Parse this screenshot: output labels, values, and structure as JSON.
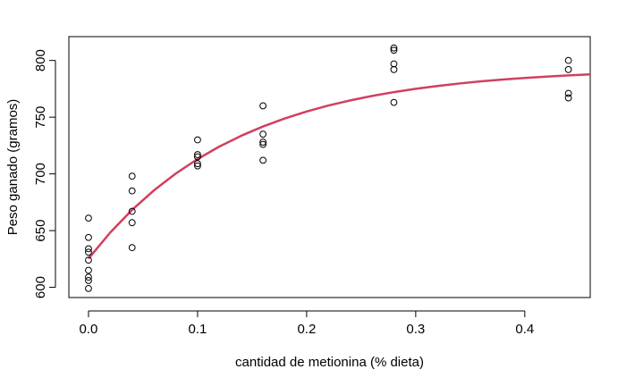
{
  "chart_data": {
    "type": "scatter",
    "title": "",
    "xlabel": "cantidad de metionina (% dieta)",
    "ylabel": "Peso ganado (gramos)",
    "xlim": [
      -0.018,
      0.46
    ],
    "ylim": [
      591,
      821
    ],
    "xticks": [
      {
        "value": 0.0,
        "label": "0.0"
      },
      {
        "value": 0.1,
        "label": "0.1"
      },
      {
        "value": 0.2,
        "label": "0.2"
      },
      {
        "value": 0.3,
        "label": "0.3"
      },
      {
        "value": 0.4,
        "label": "0.4"
      }
    ],
    "yticks": [
      {
        "value": 600,
        "label": "600"
      },
      {
        "value": 650,
        "label": "650"
      },
      {
        "value": 700,
        "label": "700"
      },
      {
        "value": 750,
        "label": "750"
      },
      {
        "value": 800,
        "label": "800"
      }
    ],
    "grid": false,
    "series": [
      {
        "type": "scatter",
        "marker": "open-circle",
        "color": "#000000",
        "points": [
          [
            0.0,
            661
          ],
          [
            0.0,
            644
          ],
          [
            0.0,
            634
          ],
          [
            0.0,
            631
          ],
          [
            0.0,
            624
          ],
          [
            0.0,
            615
          ],
          [
            0.0,
            609
          ],
          [
            0.0,
            606
          ],
          [
            0.0,
            599
          ],
          [
            0.04,
            698
          ],
          [
            0.04,
            685
          ],
          [
            0.04,
            667
          ],
          [
            0.04,
            657
          ],
          [
            0.04,
            635
          ],
          [
            0.1,
            730
          ],
          [
            0.1,
            717
          ],
          [
            0.1,
            715
          ],
          [
            0.1,
            709
          ],
          [
            0.1,
            707
          ],
          [
            0.16,
            760
          ],
          [
            0.16,
            735
          ],
          [
            0.16,
            728
          ],
          [
            0.16,
            726
          ],
          [
            0.16,
            712
          ],
          [
            0.28,
            811
          ],
          [
            0.28,
            809
          ],
          [
            0.28,
            797
          ],
          [
            0.28,
            792
          ],
          [
            0.28,
            763
          ],
          [
            0.44,
            800
          ],
          [
            0.44,
            792
          ],
          [
            0.44,
            771
          ],
          [
            0.44,
            767
          ]
        ]
      },
      {
        "type": "line",
        "color": "#d0405e",
        "points": [
          [
            0.0,
            625.3
          ],
          [
            0.02,
            648.4
          ],
          [
            0.04,
            668.3
          ],
          [
            0.06,
            685.5
          ],
          [
            0.08,
            700.3
          ],
          [
            0.1,
            713.1
          ],
          [
            0.12,
            724.1
          ],
          [
            0.14,
            733.6
          ],
          [
            0.16,
            741.8
          ],
          [
            0.18,
            748.9
          ],
          [
            0.2,
            755.0
          ],
          [
            0.22,
            760.3
          ],
          [
            0.24,
            764.8
          ],
          [
            0.26,
            768.7
          ],
          [
            0.28,
            772.1
          ],
          [
            0.3,
            775.0
          ],
          [
            0.32,
            777.5
          ],
          [
            0.34,
            779.7
          ],
          [
            0.36,
            781.6
          ],
          [
            0.38,
            783.2
          ],
          [
            0.4,
            784.6
          ],
          [
            0.42,
            785.8
          ],
          [
            0.44,
            786.8
          ],
          [
            0.46,
            787.7
          ]
        ]
      }
    ]
  }
}
